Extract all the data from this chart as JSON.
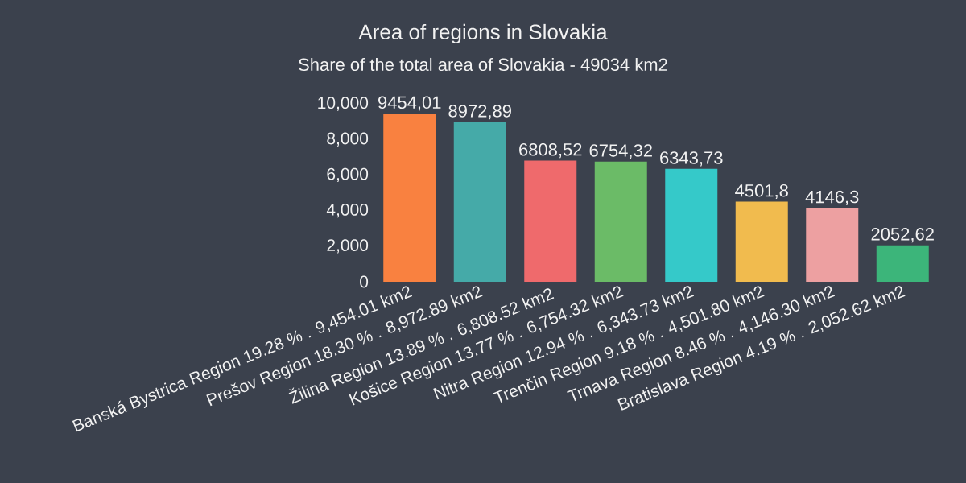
{
  "chart_data": {
    "type": "bar",
    "title": "Area of regions in Slovakia",
    "subtitle": "Share of the total area of Slovakia - 49034 km2",
    "categories": [
      "Banská Bystrica Region  19.28 %  .  9,454.01 km2",
      "Prešov Region  18.30 %  .  8,972.89 km2",
      "Žilina Region  13.89 %  .  6,808.52 km2",
      "Košice Region  13.77 %  .  6,754.32 km2",
      "Nitra Region  12.94 %  .  6,343.73 km2",
      "Trenčin Region  9.18 %  .  4,501.80 km2",
      "Trnava Region  8.46 %  .  4,146.30 km2",
      "Bratislava Region  4.19 %  .  2,052.62 km2"
    ],
    "values": [
      9454.01,
      8972.89,
      6808.52,
      6754.32,
      6343.73,
      4501.8,
      4146.3,
      2052.62
    ],
    "value_labels": [
      "9454,01",
      "8972,89",
      "6808,52",
      "6754,32",
      "6343,73",
      "4501,8",
      "4146,3",
      "2052,62"
    ],
    "colors": [
      "#f98140",
      "#45aaa8",
      "#ef6a6c",
      "#6bbb67",
      "#35c9c9",
      "#f1bb4e",
      "#eda0a1",
      "#3cb57a"
    ],
    "ylim": [
      0,
      10000
    ],
    "yticks": [
      0,
      {
        "value": 2000,
        "label": "2,000"
      },
      {
        "value": 4000,
        "label": "4,000"
      },
      {
        "value": 6000,
        "label": "6,000"
      },
      {
        "value": 8000,
        "label": "8,000"
      },
      {
        "value": 10000,
        "label": "10,000"
      }
    ]
  }
}
